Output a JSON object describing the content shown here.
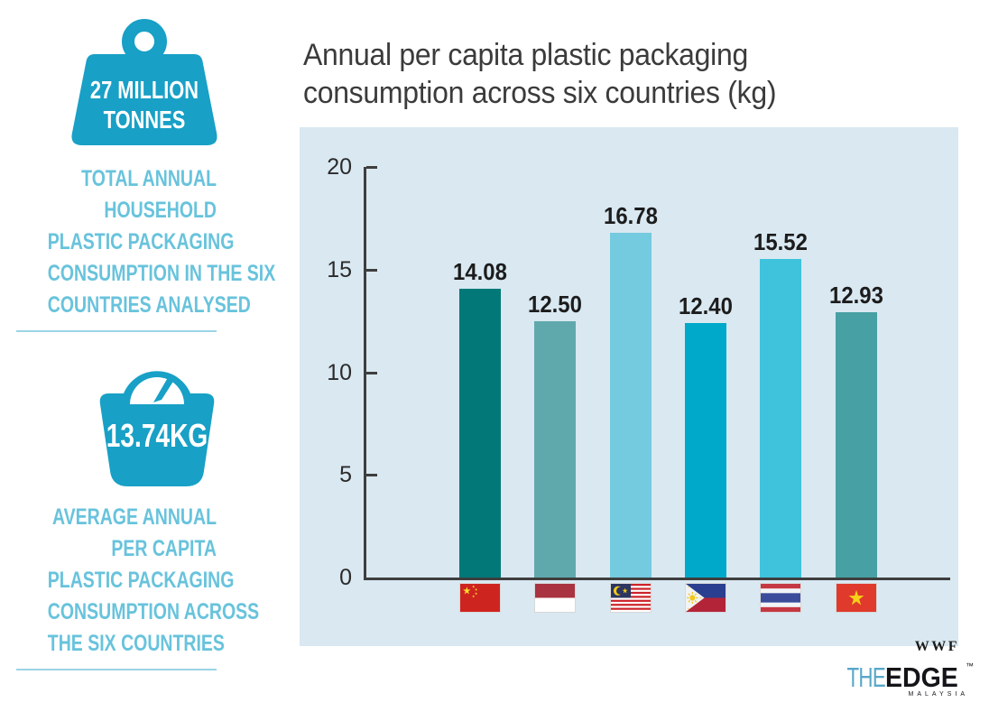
{
  "sidebar": {
    "accent_color": "#18A0C6",
    "caption_color": "#68C3DC",
    "divider_color": "#9BD4E6",
    "stat_total": {
      "icon": "weight-icon",
      "value_lines": [
        "27 MILLION",
        "TONNES"
      ],
      "caption_lines": [
        "TOTAL ANNUAL",
        "HOUSEHOLD",
        "PLASTIC PACKAGING",
        "CONSUMPTION IN THE SIX",
        "COUNTRIES ANALYSED"
      ]
    },
    "stat_average": {
      "icon": "scale-icon",
      "value": "13.74KG",
      "caption_lines": [
        "AVERAGE ANNUAL",
        "PER CAPITA",
        "PLASTIC PACKAGING",
        "CONSUMPTION ACROSS",
        "THE SIX COUNTRIES"
      ]
    }
  },
  "chart": {
    "title_line1": "Annual per capita plastic packaging",
    "title_line2": "consumption across six countries (kg)"
  },
  "chart_data": {
    "type": "bar",
    "title": "Annual per capita plastic packaging consumption across six countries (kg)",
    "categories": [
      "China",
      "Indonesia",
      "Malaysia",
      "Philippines",
      "Thailand",
      "Vietnam"
    ],
    "values": [
      14.08,
      12.5,
      16.78,
      12.4,
      15.52,
      12.93
    ],
    "value_labels": [
      "14.08",
      "12.50",
      "16.78",
      "12.40",
      "15.52",
      "12.93"
    ],
    "bar_colors": [
      "#027879",
      "#5FA9AD",
      "#74CADF",
      "#00A9C9",
      "#3FC3DC",
      "#47A0A3"
    ],
    "x_axis_icons": [
      "flag-china",
      "flag-indonesia",
      "flag-malaysia",
      "flag-philippines",
      "flag-thailand",
      "flag-vietnam"
    ],
    "xlabel": "",
    "ylabel": "",
    "ylim": [
      0,
      20
    ],
    "yticks": [
      0,
      5,
      10,
      15,
      20
    ],
    "grid": false,
    "legend": "none",
    "plot_background": "#D9E8F1",
    "axis_color": "#3E3E3E"
  },
  "footer": {
    "wwf_label": "WWF",
    "edge_the": "THE",
    "edge_edge": "EDGE",
    "edge_tm": "™",
    "edge_sub": "MALAYSIA"
  }
}
